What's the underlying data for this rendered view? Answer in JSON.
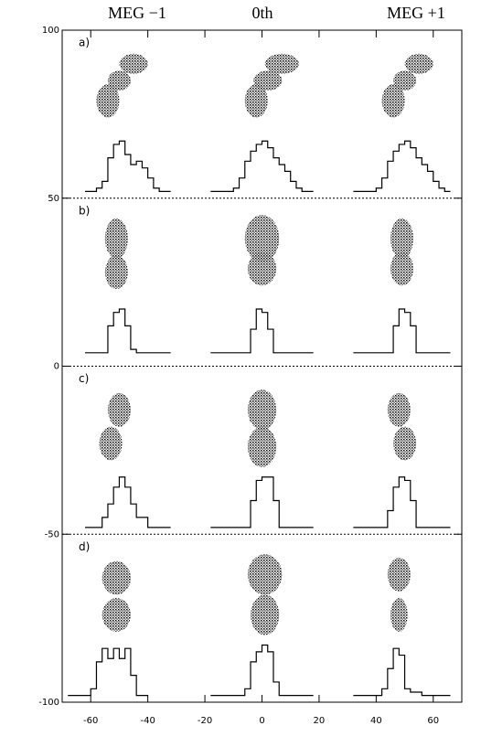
{
  "chart_data": {
    "type": "scatter",
    "column_titles": [
      "MEG −1",
      "0th",
      "MEG +1"
    ],
    "xlim": [
      -70,
      70
    ],
    "ylim": [
      -100,
      100
    ],
    "xticks": [
      -60,
      -40,
      -20,
      0,
      20,
      40,
      60
    ],
    "yticks": [
      -100,
      -50,
      0,
      50,
      100
    ],
    "separators": [
      50,
      0,
      -50
    ],
    "panels": [
      {
        "label": "a)",
        "clusters": [
          {
            "x": -54,
            "y": 79,
            "rx": 4,
            "ry": 5
          },
          {
            "x": -50,
            "y": 85,
            "rx": 4,
            "ry": 3
          },
          {
            "x": -45,
            "y": 90,
            "rx": 5,
            "ry": 3
          },
          {
            "x": -2,
            "y": 79,
            "rx": 4,
            "ry": 5
          },
          {
            "x": 2,
            "y": 85,
            "rx": 5,
            "ry": 3
          },
          {
            "x": 7,
            "y": 90,
            "rx": 6,
            "ry": 3
          },
          {
            "x": 46,
            "y": 79,
            "rx": 4,
            "ry": 5
          },
          {
            "x": 50,
            "y": 85,
            "rx": 4,
            "ry": 3
          },
          {
            "x": 55,
            "y": 90,
            "rx": 5,
            "ry": 3
          }
        ],
        "histograms": [
          {
            "bins": [
              -62,
              -58,
              -56,
              -54,
              -52,
              -50,
              -48,
              -46,
              -44,
              -42,
              -40,
              -38,
              -36,
              -32
            ],
            "counts": [
              52,
              53,
              55,
              62,
              66,
              67,
              63,
              60,
              61,
              59,
              56,
              53,
              52
            ]
          },
          {
            "bins": [
              -18,
              -10,
              -8,
              -6,
              -4,
              -2,
              0,
              2,
              4,
              6,
              8,
              10,
              12,
              14,
              18
            ],
            "counts": [
              52,
              53,
              56,
              61,
              64,
              66,
              67,
              65,
              62,
              60,
              58,
              55,
              53,
              52
            ]
          },
          {
            "bins": [
              32,
              40,
              42,
              44,
              46,
              48,
              50,
              52,
              54,
              56,
              58,
              60,
              62,
              64,
              66
            ],
            "counts": [
              52,
              53,
              56,
              61,
              64,
              66,
              67,
              65,
              62,
              60,
              58,
              55,
              53,
              52
            ]
          }
        ]
      },
      {
        "label": "b)",
        "clusters": [
          {
            "x": -51,
            "y": 38,
            "rx": 4,
            "ry": 6
          },
          {
            "x": -51,
            "y": 28,
            "rx": 4,
            "ry": 5
          },
          {
            "x": 0,
            "y": 38,
            "rx": 6,
            "ry": 7
          },
          {
            "x": 0,
            "y": 29,
            "rx": 5,
            "ry": 5
          },
          {
            "x": 49,
            "y": 38,
            "rx": 4,
            "ry": 6
          },
          {
            "x": 49,
            "y": 29,
            "rx": 4,
            "ry": 5
          }
        ],
        "histograms": [
          {
            "bins": [
              -62,
              -54,
              -52,
              -50,
              -48,
              -46,
              -44,
              -32
            ],
            "counts": [
              4,
              12,
              16,
              17,
              12,
              5,
              4
            ]
          },
          {
            "bins": [
              -18,
              -4,
              -2,
              0,
              2,
              4,
              18
            ],
            "counts": [
              4,
              11,
              17,
              16,
              11,
              4
            ]
          },
          {
            "bins": [
              32,
              46,
              48,
              50,
              52,
              54,
              66
            ],
            "counts": [
              4,
              12,
              17,
              16,
              12,
              4
            ]
          }
        ]
      },
      {
        "label": "c)",
        "clusters": [
          {
            "x": -50,
            "y": -13,
            "rx": 4,
            "ry": 5
          },
          {
            "x": -53,
            "y": -23,
            "rx": 4,
            "ry": 5
          },
          {
            "x": 0,
            "y": -13,
            "rx": 5,
            "ry": 6
          },
          {
            "x": 0,
            "y": -24,
            "rx": 5,
            "ry": 6
          },
          {
            "x": 48,
            "y": -13,
            "rx": 4,
            "ry": 5
          },
          {
            "x": 50,
            "y": -23,
            "rx": 4,
            "ry": 5
          }
        ],
        "histograms": [
          {
            "bins": [
              -62,
              -56,
              -54,
              -52,
              -50,
              -48,
              -46,
              -44,
              -40,
              -32
            ],
            "counts": [
              -48,
              -45,
              -41,
              -36,
              -33,
              -36,
              -41,
              -45,
              -48
            ]
          },
          {
            "bins": [
              -18,
              -4,
              -2,
              0,
              4,
              6,
              18
            ],
            "counts": [
              -48,
              -40,
              -34,
              -33,
              -40,
              -48
            ]
          },
          {
            "bins": [
              32,
              44,
              46,
              48,
              50,
              52,
              54,
              66
            ],
            "counts": [
              -48,
              -43,
              -36,
              -33,
              -34,
              -40,
              -48
            ]
          }
        ]
      },
      {
        "label": "d)",
        "clusters": [
          {
            "x": -51,
            "y": -63,
            "rx": 5,
            "ry": 5
          },
          {
            "x": -51,
            "y": -74,
            "rx": 5,
            "ry": 5
          },
          {
            "x": 1,
            "y": -62,
            "rx": 6,
            "ry": 6
          },
          {
            "x": 1,
            "y": -74,
            "rx": 5,
            "ry": 6
          },
          {
            "x": 48,
            "y": -62,
            "rx": 4,
            "ry": 5
          },
          {
            "x": 48,
            "y": -74,
            "rx": 3,
            "ry": 5
          }
        ],
        "histograms": [
          {
            "bins": [
              -68,
              -60,
              -58,
              -56,
              -54,
              -52,
              -50,
              -48,
              -46,
              -44,
              -40
            ],
            "counts": [
              -98,
              -96,
              -88,
              -84,
              -87,
              -84,
              -87,
              -84,
              -92,
              -98
            ]
          },
          {
            "bins": [
              -18,
              -6,
              -4,
              -2,
              0,
              2,
              4,
              6,
              18
            ],
            "counts": [
              -98,
              -96,
              -88,
              -85,
              -83,
              -85,
              -94,
              -98
            ]
          },
          {
            "bins": [
              32,
              42,
              44,
              46,
              48,
              50,
              52,
              56,
              66
            ],
            "counts": [
              -98,
              -96,
              -90,
              -84,
              -86,
              -96,
              -97,
              -98
            ]
          }
        ]
      }
    ]
  }
}
